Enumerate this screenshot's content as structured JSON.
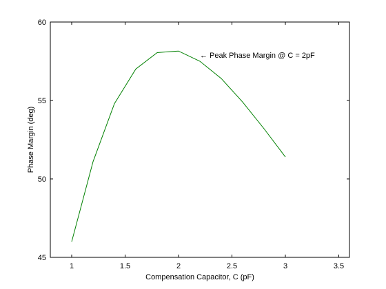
{
  "chart_data": {
    "type": "line",
    "title": "",
    "xlabel": "Compensation Capacitor, C (pF)",
    "ylabel": "Phase Margin (deg)",
    "xlim": [
      0.8,
      3.6
    ],
    "ylim": [
      45,
      60
    ],
    "xticks": [
      1,
      1.5,
      2,
      2.5,
      3,
      3.5
    ],
    "xtick_labels": [
      "1",
      "1.5",
      "2",
      "2.5",
      "3",
      "3.5"
    ],
    "yticks": [
      45,
      50,
      55,
      60
    ],
    "ytick_labels": [
      "45",
      "50",
      "55",
      "60"
    ],
    "grid": false,
    "legend": "none",
    "series": [
      {
        "color": "#008000",
        "x": [
          1.0,
          1.2,
          1.4,
          1.6,
          1.8,
          1.9,
          2.0,
          2.2,
          2.4,
          2.6,
          2.8,
          3.0
        ],
        "y": [
          46.0,
          51.1,
          54.8,
          57.0,
          58.05,
          58.1,
          58.15,
          57.5,
          56.4,
          54.9,
          53.2,
          51.4
        ]
      }
    ],
    "annotation": {
      "text": "← Peak Phase Margin @ C = 2pF",
      "x": 2.2,
      "y": 57.9
    }
  }
}
